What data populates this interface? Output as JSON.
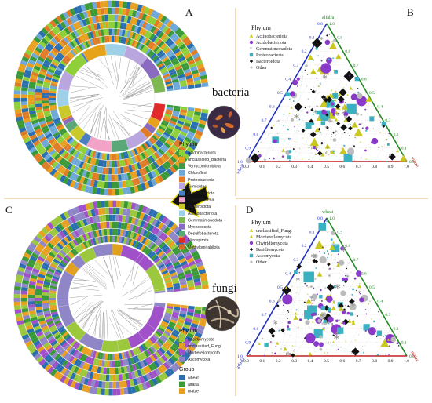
{
  "panels": {
    "A": "A",
    "B": "B",
    "C": "C",
    "D": "D"
  },
  "labels": {
    "bacteria": "bacteria",
    "fungi": "fungi"
  },
  "legend_bacteria": {
    "title": "Phylum",
    "items": [
      {
        "name": "Acidobacteriota",
        "color": "#8fcf3a"
      },
      {
        "name": "unclassified_Bacteria",
        "color": "#e6a21a"
      },
      {
        "name": "Verrucomicrobiota",
        "color": "#3f9a4a"
      },
      {
        "name": "Chloroflexi",
        "color": "#6ea8d8"
      },
      {
        "name": "Proteobacteria",
        "color": "#e07b28"
      },
      {
        "name": "Firmicutes",
        "color": "#b9a6de"
      },
      {
        "name": "Fusobacteriota",
        "color": "#4b7fc0"
      },
      {
        "name": "Cyanobacteria",
        "color": "#f4a3c8"
      },
      {
        "name": "Bacteroidota",
        "color": "#c9c92a"
      },
      {
        "name": "Actinobacteriota",
        "color": "#9ed1e8"
      },
      {
        "name": "Gemmatimonadota",
        "color": "#7db850"
      },
      {
        "name": "Myxococcota",
        "color": "#8a6bc0"
      },
      {
        "name": "Desulfobacterota",
        "color": "#5aa878"
      },
      {
        "name": "Nitrospirota",
        "color": "#e12a2a"
      },
      {
        "name": "Methylomirabilota",
        "color": "#d26a2a"
      }
    ]
  },
  "legend_fungi": {
    "title": "Phylum",
    "items": [
      {
        "name": "Basidiomycota",
        "color": "#9bc83c"
      },
      {
        "name": "unclassified_Fungi",
        "color": "#e0a020"
      },
      {
        "name": "Mortierellomycota",
        "color": "#a050c8"
      },
      {
        "name": "Ascomycota",
        "color": "#8f86c8"
      }
    ],
    "group_title": "Group",
    "groups": [
      {
        "name": "wheat",
        "color": "#2a6fb0"
      },
      {
        "name": "alfalfa",
        "color": "#3a9a3a"
      },
      {
        "name": "maize",
        "color": "#e8a020"
      }
    ]
  },
  "ternary_B": {
    "legend_title": "Phylum",
    "legend": [
      {
        "name": "Actinobacteriota",
        "color": "#c8c820",
        "shape": "triangle"
      },
      {
        "name": "Acidobacteriota",
        "color": "#8a3ac8",
        "shape": "circle"
      },
      {
        "name": "Gemmatimonadota",
        "color": "#888888",
        "shape": "star"
      },
      {
        "name": "Proteobacteria",
        "color": "#3ab0c0",
        "shape": "square"
      },
      {
        "name": "Bacteroidota",
        "color": "#111111",
        "shape": "diamond"
      },
      {
        "name": "Other",
        "color": "#bbbbbb",
        "shape": "dot"
      }
    ],
    "vertex_top": "alfalfa",
    "vertex_left": "wheat",
    "vertex_right": "maize",
    "ticks": [
      "0.0",
      "0.1",
      "0.2",
      "0.3",
      "0.4",
      "0.5",
      "0.6",
      "0.7",
      "0.8",
      "0.9",
      "1.0"
    ]
  },
  "ternary_D": {
    "legend_title": "Phylum",
    "legend": [
      {
        "name": "unclassified_Fungi",
        "color": "#c8c820",
        "shape": "triangle"
      },
      {
        "name": "Mortierellomycota",
        "color": "#c8c820",
        "shape": "triangle"
      },
      {
        "name": "Chytridiomycota",
        "color": "#8a3ac8",
        "shape": "circle"
      },
      {
        "name": "Basidiomycota",
        "color": "#111111",
        "shape": "diamond"
      },
      {
        "name": "Ascomycota",
        "color": "#3ab0c0",
        "shape": "square"
      },
      {
        "name": "Other",
        "color": "#bbbbbb",
        "shape": "dot"
      }
    ],
    "vertex_top": "wheat",
    "vertex_left": "alfalfa",
    "vertex_right": "maize",
    "ticks": [
      "0.0",
      "0.1",
      "0.2",
      "0.3",
      "0.4",
      "0.5",
      "0.6",
      "0.7",
      "0.8",
      "0.9",
      "1.0"
    ]
  }
}
